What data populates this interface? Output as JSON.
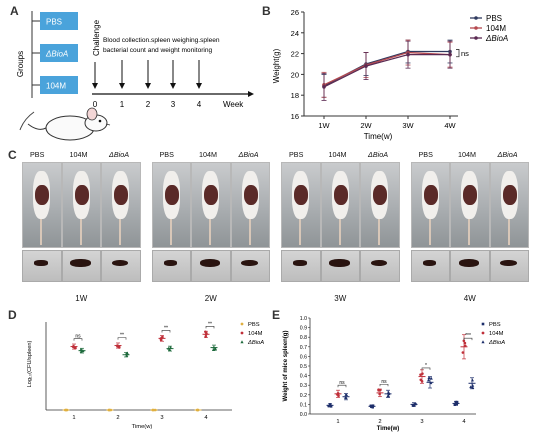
{
  "panels": {
    "A": "A",
    "B": "B",
    "C": "C",
    "D": "D",
    "E": "E"
  },
  "panelA": {
    "groups_label": "Groups",
    "group_boxes": [
      "PBS",
      "ΔBioA",
      "104M"
    ],
    "challenge_label": "Challenge",
    "description_line1": "Blood collection.spleen weighing.spleen",
    "description_line2": "bacterial count and weight monitoring",
    "timeline_ticks": [
      "0",
      "1",
      "2",
      "3",
      "4"
    ],
    "timeline_unit": "Week",
    "box_color": "#4aa3db"
  },
  "panelC": {
    "group_labels": [
      "PBS",
      "104M",
      "ΔBioA"
    ],
    "week_labels": [
      "1W",
      "2W",
      "3W",
      "4W"
    ]
  },
  "chart_data": [
    {
      "type": "line",
      "panel": "B",
      "xlabel": "Time(w)",
      "ylabel": "Weight(g)",
      "categories": [
        "1W",
        "2W",
        "3W",
        "4W"
      ],
      "ylim": [
        16,
        26
      ],
      "yticks": [
        "16",
        "18",
        "20",
        "22",
        "24",
        "26"
      ],
      "series": [
        {
          "name": "PBS",
          "values": [
            18.9,
            21.0,
            22.2,
            22.2
          ],
          "color": "#2f3a5f"
        },
        {
          "name": "104M",
          "values": [
            19.0,
            20.9,
            22.1,
            21.9
          ],
          "color": "#b5494f"
        },
        {
          "name": "ΔBioA",
          "values": [
            18.8,
            20.8,
            21.9,
            21.9
          ],
          "color": "#5a2a52"
        }
      ],
      "annotations": [
        "ns"
      ],
      "legend": "top-right"
    },
    {
      "type": "scatter",
      "panel": "D",
      "xlabel": "Time(w)",
      "ylabel": "Log₁₀(CFU/spleen)",
      "categories": [
        "1",
        "2",
        "3",
        "4"
      ],
      "series": [
        {
          "name": "PBS",
          "values": [
            0,
            0,
            0,
            0
          ],
          "color": "#e0b040"
        },
        {
          "name": "104M",
          "values": [
            6.2,
            6.3,
            7.0,
            7.4
          ],
          "color": "#c0303a"
        },
        {
          "name": "ΔBioA",
          "values": [
            5.8,
            5.4,
            6.0,
            6.1
          ],
          "color": "#1f6b3d"
        }
      ],
      "annotations": [
        "ns",
        "**",
        "**",
        "**"
      ],
      "legend": "top-right"
    },
    {
      "type": "scatter",
      "panel": "E",
      "xlabel": "Time(w)",
      "ylabel": "Weight of mice spleen(g)",
      "categories": [
        "1",
        "2",
        "3",
        "4"
      ],
      "ylim": [
        0.0,
        1.0
      ],
      "yticks": [
        "0.0",
        "0.1",
        "0.2",
        "0.3",
        "0.4",
        "0.5",
        "0.6",
        "0.7",
        "0.8",
        "0.9",
        "1.0"
      ],
      "series": [
        {
          "name": "PBS",
          "values": [
            0.09,
            0.08,
            0.1,
            0.11
          ],
          "color": "#1e2f6b"
        },
        {
          "name": "104M",
          "values": [
            0.21,
            0.22,
            0.39,
            0.7
          ],
          "color": "#c0303a"
        },
        {
          "name": "ΔBioA",
          "values": [
            0.18,
            0.21,
            0.33,
            0.32
          ],
          "color": "#1e2f6b"
        }
      ],
      "annotations": [
        "ns",
        "ns",
        "*",
        "***"
      ],
      "legend": "top-right"
    }
  ]
}
